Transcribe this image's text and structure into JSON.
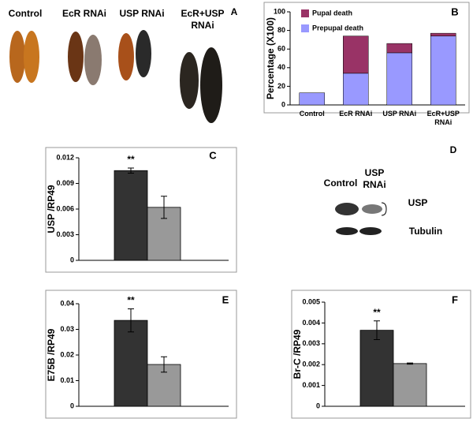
{
  "panel_a": {
    "letter": "A",
    "labels": [
      "Control",
      "EcR RNAi",
      "USP RNAi",
      "EcR+USP RNAi"
    ]
  },
  "panel_d": {
    "letter": "D",
    "lanes": [
      "Control",
      "USP RNAi"
    ],
    "bands": [
      "USP",
      "Tubulin"
    ]
  },
  "chart_data": [
    {
      "type": "stacked-bar",
      "letter": "B",
      "ylabel": "Percentage (X100)",
      "categories": [
        "Control",
        "EcR RNAi",
        "USP RNAi",
        "EcR+USP RNAi"
      ],
      "series": [
        {
          "name": "Prepupal death",
          "color": "#9999ff",
          "values": [
            13,
            34,
            56,
            74
          ]
        },
        {
          "name": "Pupal death",
          "color": "#993366",
          "values": [
            0,
            40,
            10,
            3
          ]
        }
      ],
      "ylim": [
        0,
        100
      ],
      "yticks": [
        0,
        20,
        40,
        60,
        80,
        100
      ]
    },
    {
      "type": "bar",
      "letter": "C",
      "ylabel": "USP /RP49",
      "annotation": "**",
      "values": [
        0.0105,
        0.0062
      ],
      "errors": [
        0.0003,
        0.0013
      ],
      "colors": [
        "#333333",
        "#999999"
      ],
      "ylim": [
        0,
        0.012
      ],
      "yticks": [
        0,
        0.003,
        0.006,
        0.009,
        0.012
      ]
    },
    {
      "type": "bar",
      "letter": "E",
      "ylabel": "E75B /RP49",
      "annotation": "**",
      "values": [
        0.0335,
        0.0163
      ],
      "errors": [
        0.0045,
        0.003
      ],
      "colors": [
        "#333333",
        "#999999"
      ],
      "ylim": [
        0,
        0.04
      ],
      "yticks": [
        0,
        0.01,
        0.02,
        0.03,
        0.04
      ]
    },
    {
      "type": "bar",
      "letter": "F",
      "ylabel": "Br-C /RP49",
      "annotation": "**",
      "values": [
        0.00365,
        0.00205
      ],
      "errors": [
        0.00045,
        3e-05
      ],
      "colors": [
        "#333333",
        "#999999"
      ],
      "ylim": [
        0,
        0.005
      ],
      "yticks": [
        0,
        0.001,
        0.002,
        0.003,
        0.004,
        0.005
      ]
    }
  ]
}
